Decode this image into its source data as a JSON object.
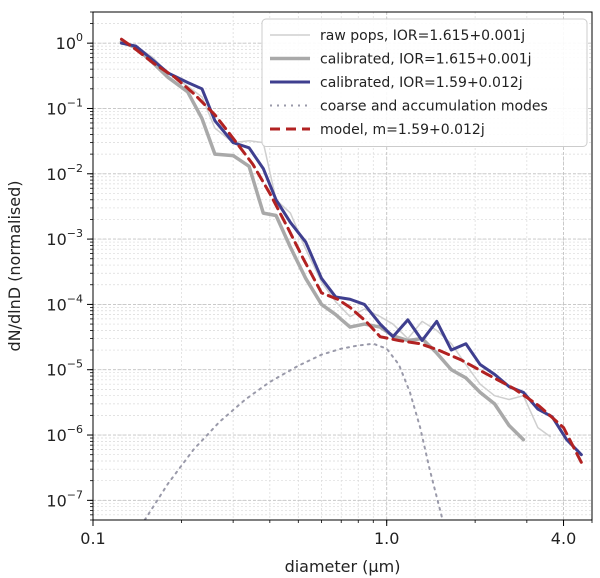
{
  "chart_data": {
    "type": "line",
    "xscale": "log",
    "yscale": "log",
    "xlim": [
      0.1,
      5.0
    ],
    "ylim": [
      5e-08,
      3.0
    ],
    "xlabel": "diameter (μm)",
    "ylabel": "dN/dlnD (normalised)",
    "xticks": [
      {
        "value": 0.1,
        "label": "0.1"
      },
      {
        "value": 1.0,
        "label": "1.0"
      },
      {
        "value": 4.0,
        "label": "4.0"
      }
    ],
    "yticks": [
      {
        "value": 1e-07,
        "base": "10",
        "exp": "−7"
      },
      {
        "value": 1e-06,
        "base": "10",
        "exp": "−6"
      },
      {
        "value": 1e-05,
        "base": "10",
        "exp": "−5"
      },
      {
        "value": 0.0001,
        "base": "10",
        "exp": "−4"
      },
      {
        "value": 0.001,
        "base": "10",
        "exp": "−3"
      },
      {
        "value": 0.01,
        "base": "10",
        "exp": "−2"
      },
      {
        "value": 0.1,
        "base": "10",
        "exp": "−1"
      },
      {
        "value": 1,
        "base": "10",
        "exp": "0"
      }
    ],
    "grid": true,
    "legend_position": "top-right",
    "series": [
      {
        "name": "raw pops, IOR=1.615+0.001j",
        "color": "#cfcfcf",
        "width": 1.5,
        "dash": "",
        "x": [
          0.125,
          0.14,
          0.16,
          0.18,
          0.21,
          0.235,
          0.26,
          0.3,
          0.34,
          0.38,
          0.42,
          0.47,
          0.53,
          0.6,
          0.67,
          0.75,
          0.84,
          0.95,
          1.05,
          1.18,
          1.32,
          1.48,
          1.66,
          1.86,
          2.08,
          2.33,
          2.61,
          2.92,
          3.27,
          3.6
        ],
        "y": [
          1.1,
          0.9,
          0.6,
          0.35,
          0.22,
          0.15,
          0.05,
          0.03,
          0.032,
          0.03,
          0.004,
          0.0025,
          0.0007,
          0.00022,
          0.00011,
          6.5e-05,
          8.5e-05,
          6.5e-05,
          5e-05,
          3e-05,
          5.5e-05,
          4e-05,
          2.5e-05,
          1.2e-05,
          6e-06,
          4e-06,
          3.5e-06,
          4e-06,
          1.3e-06,
          9.5e-07
        ]
      },
      {
        "name": "calibrated, IOR=1.615+0.001j",
        "color": "#a9a9a9",
        "width": 3.5,
        "dash": "",
        "x": [
          0.125,
          0.14,
          0.16,
          0.18,
          0.21,
          0.235,
          0.26,
          0.3,
          0.34,
          0.38,
          0.42,
          0.47,
          0.53,
          0.6,
          0.67,
          0.75,
          0.84,
          0.95,
          1.05,
          1.18,
          1.32,
          1.48,
          1.66,
          1.86,
          2.08,
          2.33,
          2.61,
          2.92
        ],
        "y": [
          1.05,
          0.85,
          0.5,
          0.3,
          0.18,
          0.07,
          0.02,
          0.019,
          0.013,
          0.0025,
          0.0023,
          0.00075,
          0.00025,
          0.0001,
          7e-05,
          4.5e-05,
          5e-05,
          4.5e-05,
          3.3e-05,
          2.8e-05,
          3e-05,
          1.8e-05,
          1e-05,
          7.5e-06,
          4.5e-06,
          3e-06,
          1.4e-06,
          8.5e-07
        ]
      },
      {
        "name": "calibrated, IOR=1.59+0.012j",
        "color": "#3f3f8f",
        "width": 3.0,
        "dash": "",
        "x": [
          0.125,
          0.14,
          0.16,
          0.18,
          0.21,
          0.235,
          0.26,
          0.3,
          0.34,
          0.38,
          0.42,
          0.47,
          0.53,
          0.6,
          0.67,
          0.75,
          0.84,
          0.95,
          1.05,
          1.18,
          1.32,
          1.48,
          1.66,
          1.86,
          2.08,
          2.33,
          2.61,
          2.92,
          3.27,
          3.66,
          4.1,
          4.6
        ],
        "y": [
          1.0,
          0.9,
          0.55,
          0.35,
          0.25,
          0.2,
          0.065,
          0.03,
          0.025,
          0.012,
          0.004,
          0.0018,
          0.0009,
          0.00025,
          0.00013,
          0.00012,
          0.0001,
          5e-05,
          3.2e-05,
          5.8e-05,
          2.8e-05,
          5.5e-05,
          2e-05,
          2.5e-05,
          1.2e-05,
          8.5e-06,
          5.5e-06,
          4.5e-06,
          2.5e-06,
          1.9e-06,
          8.5e-07,
          5e-07
        ]
      },
      {
        "name": "coarse and accumulation modes",
        "color": "#9a9aaa",
        "width": 2.0,
        "dash": "2,5",
        "x": [
          0.15,
          0.18,
          0.22,
          0.27,
          0.33,
          0.4,
          0.5,
          0.6,
          0.7,
          0.8,
          0.9,
          1.0,
          1.1,
          1.2,
          1.3,
          1.4,
          1.55
        ],
        "y": [
          5e-08,
          1.8e-07,
          6e-07,
          1.6e-06,
          3.5e-06,
          6.5e-06,
          1.15e-05,
          1.7e-05,
          2.1e-05,
          2.35e-05,
          2.5e-05,
          2.1e-05,
          1.2e-05,
          4.5e-06,
          1.3e-06,
          3e-07,
          5e-08
        ]
      },
      {
        "name": "model, m=1.59+0.012j",
        "color": "#b22222",
        "width": 3.0,
        "dash": "10,6",
        "x": [
          0.125,
          0.14,
          0.16,
          0.19,
          0.22,
          0.26,
          0.3,
          0.35,
          0.4,
          0.46,
          0.52,
          0.6,
          0.68,
          0.75,
          0.85,
          0.95,
          1.1,
          1.3,
          1.5,
          1.8,
          2.2,
          2.7,
          3.3,
          4.0,
          4.6
        ],
        "y": [
          1.15,
          0.8,
          0.5,
          0.3,
          0.17,
          0.08,
          0.035,
          0.014,
          0.005,
          0.0015,
          0.0005,
          0.00015,
          0.00012,
          9e-05,
          5.5e-05,
          3.2e-05,
          2.8e-05,
          2.5e-05,
          2e-05,
          1.4e-05,
          8.5e-06,
          5.2e-06,
          2.8e-06,
          1.3e-06,
          3.8e-07
        ]
      }
    ]
  }
}
